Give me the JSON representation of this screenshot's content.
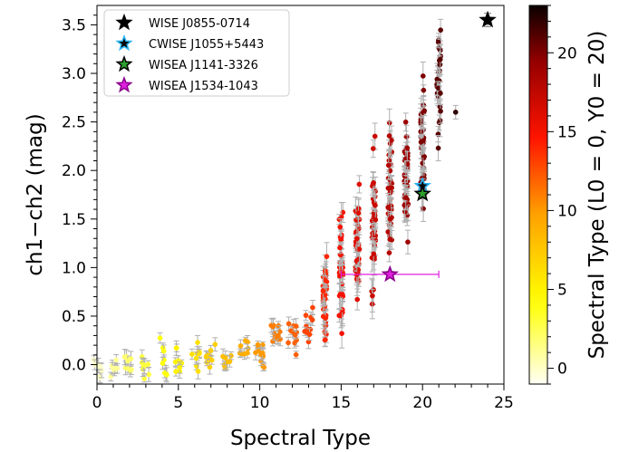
{
  "chart_data": {
    "type": "scatter",
    "xlabel": "Spectral Type",
    "ylabel": "ch1−ch2 (mag)",
    "xlim": [
      0,
      25
    ],
    "ylim": [
      -0.2,
      3.7
    ],
    "xticks": [
      "0",
      "5",
      "10",
      "15",
      "20",
      "25"
    ],
    "yticks": [
      "0.0",
      "0.5",
      "1.0",
      "1.5",
      "2.0",
      "2.5",
      "3.0",
      "3.5"
    ],
    "colorbar": {
      "label": "Spectral Type (L0 = 0, Y0 = 20)",
      "range": [
        -1,
        23
      ],
      "ticks": [
        "0",
        "5",
        "10",
        "15",
        "20"
      ]
    },
    "legend_position": "top-left",
    "highlighted": [
      {
        "name": "WISE J0855-0714",
        "x": 24,
        "y": 3.55,
        "xerr": 0,
        "yerr": 0.07,
        "color": "#000000"
      },
      {
        "name": "CWISE J1055+5443",
        "x": 20,
        "y": 1.84,
        "xerr": 0,
        "yerr": 0.07,
        "color": "#1f77b4"
      },
      {
        "name": "WISEA J1141-3326",
        "x": 20,
        "y": 1.76,
        "xerr": 0,
        "yerr": 0.05,
        "color": "#2ca02c"
      },
      {
        "name": "WISEA J1534-1043",
        "x": 18,
        "y": 0.93,
        "xerr": 3,
        "yerr": 0.03,
        "color": "#e020e0"
      }
    ],
    "sample_trend": [
      {
        "x": 0,
        "y": -0.05
      },
      {
        "x": 1,
        "y": -0.03
      },
      {
        "x": 2,
        "y": 0.0
      },
      {
        "x": 3,
        "y": -0.02
      },
      {
        "x": 4,
        "y": 0.05
      },
      {
        "x": 5,
        "y": 0.02
      },
      {
        "x": 6,
        "y": 0.08
      },
      {
        "x": 7,
        "y": 0.1
      },
      {
        "x": 8,
        "y": 0.05
      },
      {
        "x": 9,
        "y": 0.15
      },
      {
        "x": 10,
        "y": 0.12
      },
      {
        "x": 11,
        "y": 0.3
      },
      {
        "x": 12,
        "y": 0.3
      },
      {
        "x": 13,
        "y": 0.42
      },
      {
        "x": 14,
        "y": 0.7
      },
      {
        "x": 15,
        "y": 1.0
      },
      {
        "x": 16,
        "y": 1.2
      },
      {
        "x": 17,
        "y": 1.5
      },
      {
        "x": 18,
        "y": 1.75
      },
      {
        "x": 19,
        "y": 1.95
      },
      {
        "x": 20,
        "y": 2.25
      },
      {
        "x": 21,
        "y": 2.8
      },
      {
        "x": 22,
        "y": 2.6
      }
    ],
    "sample_spread": [
      {
        "x": 0,
        "s": 0.05
      },
      {
        "x": 4,
        "s": 0.09
      },
      {
        "x": 8,
        "s": 0.07
      },
      {
        "x": 10,
        "s": 0.08
      },
      {
        "x": 13,
        "s": 0.1
      },
      {
        "x": 14,
        "s": 0.2
      },
      {
        "x": 15,
        "s": 0.3
      },
      {
        "x": 16,
        "s": 0.33
      },
      {
        "x": 17,
        "s": 0.35
      },
      {
        "x": 18,
        "s": 0.35
      },
      {
        "x": 19,
        "s": 0.3
      },
      {
        "x": 20,
        "s": 0.3
      },
      {
        "x": 21,
        "s": 0.3
      },
      {
        "x": 22,
        "s": 0.05
      }
    ],
    "sample_points_estimated": 420
  }
}
